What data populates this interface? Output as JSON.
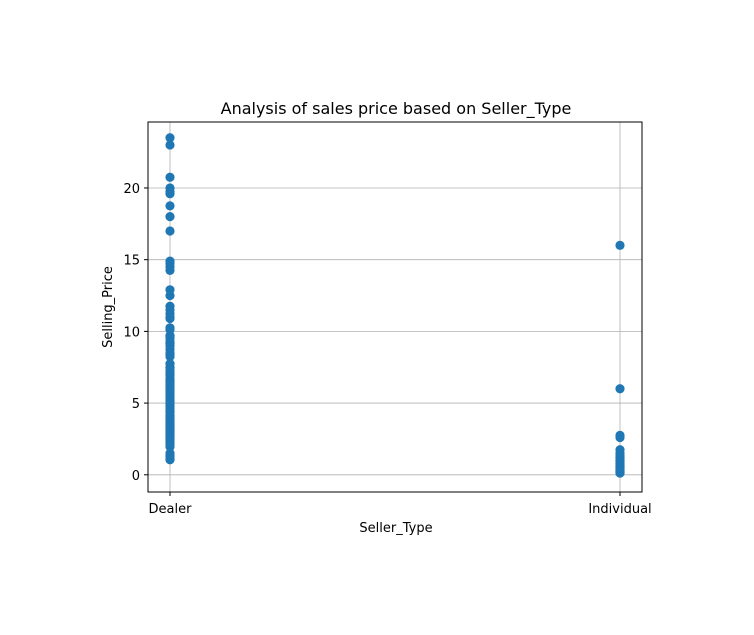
{
  "chart_data": {
    "type": "scatter",
    "title": "Analysis of sales price based on Seller_Type",
    "xlabel": "Seller_Type",
    "ylabel": "Selling_Price",
    "categories": [
      "Dealer",
      "Individual"
    ],
    "ylim": [
      -1.2,
      24.6
    ],
    "yticks": [
      0,
      5,
      10,
      15,
      20
    ],
    "grid": true,
    "marker_color": "#1f77b4",
    "series": [
      {
        "points": [
          {
            "x": "Dealer",
            "y": 23.5
          },
          {
            "x": "Dealer",
            "y": 23.0
          },
          {
            "x": "Dealer",
            "y": 20.75
          },
          {
            "x": "Dealer",
            "y": 20.0
          },
          {
            "x": "Dealer",
            "y": 19.75
          },
          {
            "x": "Dealer",
            "y": 19.6
          },
          {
            "x": "Dealer",
            "y": 18.75
          },
          {
            "x": "Dealer",
            "y": 18.0
          },
          {
            "x": "Dealer",
            "y": 17.0
          },
          {
            "x": "Dealer",
            "y": 14.9
          },
          {
            "x": "Dealer",
            "y": 14.73
          },
          {
            "x": "Dealer",
            "y": 14.5
          },
          {
            "x": "Dealer",
            "y": 14.25
          },
          {
            "x": "Dealer",
            "y": 12.9
          },
          {
            "x": "Dealer",
            "y": 12.5
          },
          {
            "x": "Dealer",
            "y": 11.75
          },
          {
            "x": "Dealer",
            "y": 11.5
          },
          {
            "x": "Dealer",
            "y": 11.25
          },
          {
            "x": "Dealer",
            "y": 11.0
          },
          {
            "x": "Dealer",
            "y": 10.9
          },
          {
            "x": "Dealer",
            "y": 10.25
          },
          {
            "x": "Dealer",
            "y": 10.11
          },
          {
            "x": "Dealer",
            "y": 9.7
          },
          {
            "x": "Dealer",
            "y": 9.65
          },
          {
            "x": "Dealer",
            "y": 9.5
          },
          {
            "x": "Dealer",
            "y": 9.25
          },
          {
            "x": "Dealer",
            "y": 9.15
          },
          {
            "x": "Dealer",
            "y": 8.99
          },
          {
            "x": "Dealer",
            "y": 8.75
          },
          {
            "x": "Dealer",
            "y": 8.5
          },
          {
            "x": "Dealer",
            "y": 8.4
          },
          {
            "x": "Dealer",
            "y": 8.25
          },
          {
            "x": "Dealer",
            "y": 7.75
          },
          {
            "x": "Dealer",
            "y": 7.5
          },
          {
            "x": "Dealer",
            "y": 7.45
          },
          {
            "x": "Dealer",
            "y": 7.25
          },
          {
            "x": "Dealer",
            "y": 7.05
          },
          {
            "x": "Dealer",
            "y": 6.95
          },
          {
            "x": "Dealer",
            "y": 6.75
          },
          {
            "x": "Dealer",
            "y": 6.6
          },
          {
            "x": "Dealer",
            "y": 6.5
          },
          {
            "x": "Dealer",
            "y": 6.4
          },
          {
            "x": "Dealer",
            "y": 6.25
          },
          {
            "x": "Dealer",
            "y": 6.1
          },
          {
            "x": "Dealer",
            "y": 6.0
          },
          {
            "x": "Dealer",
            "y": 5.95
          },
          {
            "x": "Dealer",
            "y": 5.8
          },
          {
            "x": "Dealer",
            "y": 5.75
          },
          {
            "x": "Dealer",
            "y": 5.65
          },
          {
            "x": "Dealer",
            "y": 5.5
          },
          {
            "x": "Dealer",
            "y": 5.4
          },
          {
            "x": "Dealer",
            "y": 5.25
          },
          {
            "x": "Dealer",
            "y": 5.2
          },
          {
            "x": "Dealer",
            "y": 5.11
          },
          {
            "x": "Dealer",
            "y": 4.95
          },
          {
            "x": "Dealer",
            "y": 4.9
          },
          {
            "x": "Dealer",
            "y": 4.75
          },
          {
            "x": "Dealer",
            "y": 4.6
          },
          {
            "x": "Dealer",
            "y": 4.5
          },
          {
            "x": "Dealer",
            "y": 4.4
          },
          {
            "x": "Dealer",
            "y": 4.35
          },
          {
            "x": "Dealer",
            "y": 4.15
          },
          {
            "x": "Dealer",
            "y": 4.1
          },
          {
            "x": "Dealer",
            "y": 4.0
          },
          {
            "x": "Dealer",
            "y": 3.95
          },
          {
            "x": "Dealer",
            "y": 3.8
          },
          {
            "x": "Dealer",
            "y": 3.75
          },
          {
            "x": "Dealer",
            "y": 3.65
          },
          {
            "x": "Dealer",
            "y": 3.6
          },
          {
            "x": "Dealer",
            "y": 3.51
          },
          {
            "x": "Dealer",
            "y": 3.45
          },
          {
            "x": "Dealer",
            "y": 3.35
          },
          {
            "x": "Dealer",
            "y": 3.25
          },
          {
            "x": "Dealer",
            "y": 3.15
          },
          {
            "x": "Dealer",
            "y": 3.1
          },
          {
            "x": "Dealer",
            "y": 3.0
          },
          {
            "x": "Dealer",
            "y": 2.95
          },
          {
            "x": "Dealer",
            "y": 2.9
          },
          {
            "x": "Dealer",
            "y": 2.85
          },
          {
            "x": "Dealer",
            "y": 2.75
          },
          {
            "x": "Dealer",
            "y": 2.65
          },
          {
            "x": "Dealer",
            "y": 2.55
          },
          {
            "x": "Dealer",
            "y": 2.5
          },
          {
            "x": "Dealer",
            "y": 2.35
          },
          {
            "x": "Dealer",
            "y": 2.25
          },
          {
            "x": "Dealer",
            "y": 2.1
          },
          {
            "x": "Dealer",
            "y": 1.95
          },
          {
            "x": "Dealer",
            "y": 1.5
          },
          {
            "x": "Dealer",
            "y": 1.35
          },
          {
            "x": "Dealer",
            "y": 1.25
          },
          {
            "x": "Dealer",
            "y": 1.1
          },
          {
            "x": "Dealer",
            "y": 1.05
          },
          {
            "x": "Individual",
            "y": 16.0
          },
          {
            "x": "Individual",
            "y": 6.0
          },
          {
            "x": "Individual",
            "y": 2.75
          },
          {
            "x": "Individual",
            "y": 2.6
          },
          {
            "x": "Individual",
            "y": 1.75
          },
          {
            "x": "Individual",
            "y": 1.5
          },
          {
            "x": "Individual",
            "y": 1.35
          },
          {
            "x": "Individual",
            "y": 1.2
          },
          {
            "x": "Individual",
            "y": 1.1
          },
          {
            "x": "Individual",
            "y": 1.0
          },
          {
            "x": "Individual",
            "y": 0.95
          },
          {
            "x": "Individual",
            "y": 0.9
          },
          {
            "x": "Individual",
            "y": 0.8
          },
          {
            "x": "Individual",
            "y": 0.75
          },
          {
            "x": "Individual",
            "y": 0.65
          },
          {
            "x": "Individual",
            "y": 0.6
          },
          {
            "x": "Individual",
            "y": 0.55
          },
          {
            "x": "Individual",
            "y": 0.5
          },
          {
            "x": "Individual",
            "y": 0.45
          },
          {
            "x": "Individual",
            "y": 0.4
          },
          {
            "x": "Individual",
            "y": 0.35
          },
          {
            "x": "Individual",
            "y": 0.3
          },
          {
            "x": "Individual",
            "y": 0.25
          },
          {
            "x": "Individual",
            "y": 0.2
          },
          {
            "x": "Individual",
            "y": 0.15
          },
          {
            "x": "Individual",
            "y": 0.12
          }
        ]
      }
    ]
  }
}
